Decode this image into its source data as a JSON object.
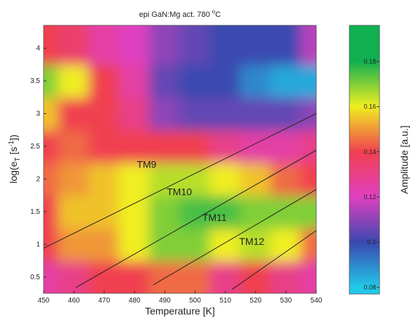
{
  "chart_data": {
    "type": "heatmap",
    "title": [
      "epi GaN:Mg act. 780 ",
      "o",
      "C"
    ],
    "x_label": "Temperature  [K]",
    "y_label": [
      "log(e",
      "T",
      "  [s",
      "-1",
      "])"
    ],
    "colorbar_label": "Amplitude [a.u.]",
    "x": [
      450,
      460,
      470,
      480,
      490,
      500,
      510,
      520,
      530,
      540
    ],
    "y": [
      0.5,
      1,
      1.5,
      2,
      2.5,
      3,
      3.5,
      4
    ],
    "z": [
      [
        0.125,
        0.13,
        0.14,
        0.14,
        0.145,
        0.145,
        0.13,
        0.14,
        0.13,
        0.125
      ],
      [
        0.14,
        0.15,
        0.15,
        0.16,
        0.17,
        0.17,
        0.16,
        0.165,
        0.16,
        0.145
      ],
      [
        0.14,
        0.155,
        0.155,
        0.16,
        0.17,
        0.175,
        0.175,
        0.17,
        0.17,
        0.17
      ],
      [
        0.145,
        0.15,
        0.155,
        0.16,
        0.165,
        0.165,
        0.16,
        0.155,
        0.145,
        0.14
      ],
      [
        0.14,
        0.145,
        0.14,
        0.14,
        0.14,
        0.14,
        0.13,
        0.125,
        0.125,
        0.13
      ],
      [
        0.155,
        0.14,
        0.14,
        0.13,
        0.11,
        0.105,
        0.105,
        0.105,
        0.105,
        0.11
      ],
      [
        0.17,
        0.16,
        0.14,
        0.125,
        0.105,
        0.1,
        0.1,
        0.09,
        0.085,
        0.085
      ],
      [
        0.14,
        0.135,
        0.125,
        0.12,
        0.11,
        0.105,
        0.1,
        0.1,
        0.1,
        0.115
      ]
    ],
    "xlim": [
      450,
      540
    ],
    "ylim": [
      0.25,
      4.35
    ],
    "xticks": [
      450,
      460,
      470,
      480,
      490,
      500,
      510,
      520,
      530,
      540
    ],
    "yticks": [
      0.5,
      1,
      1.5,
      2,
      2.5,
      3,
      3.5,
      4
    ],
    "clim": [
      0.077,
      0.196
    ],
    "cticks": [
      0.08,
      0.1,
      0.12,
      0.14,
      0.16,
      0.18
    ],
    "colorscale": [
      "#22c8e8",
      "#3a48b0",
      "#e040c0",
      "#f04050",
      "#f0ee20",
      "#10b050"
    ],
    "annotations": [
      {
        "text": "TM9",
        "x": 484,
        "y": 2.17,
        "line_x": [
          450,
          540
        ],
        "line_y": [
          0.94,
          3.0
        ]
      },
      {
        "text": "TM10",
        "x": 494.8,
        "y": 1.75,
        "line_x": [
          460.7,
          540
        ],
        "line_y": [
          0.34,
          2.44
        ]
      },
      {
        "text": "TM11",
        "x": 506.4,
        "y": 1.36,
        "line_x": [
          486.2,
          540
        ],
        "line_y": [
          0.38,
          1.84
        ]
      },
      {
        "text": "TM12",
        "x": 518.7,
        "y": 0.99,
        "line_x": [
          512.2,
          540
        ],
        "line_y": [
          0.31,
          1.21
        ]
      }
    ]
  }
}
